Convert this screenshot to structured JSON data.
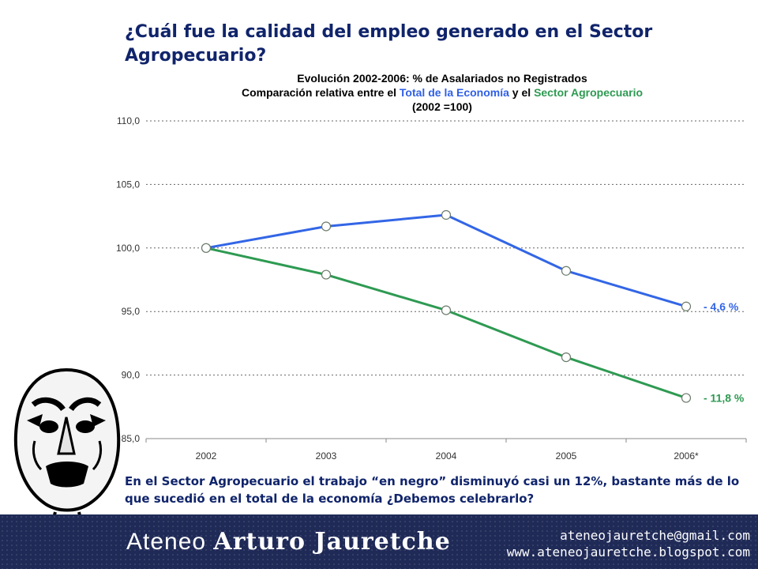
{
  "slide": {
    "title": "¿Cuál fue la calidad del empleo generado en el Sector Agropecuario?",
    "caption": "En el Sector Agropecuario el trabajo “en negro” disminuyó casi un 12%, bastante más de lo que sucedió en el total de la economía ¿Debemos celebrarlo?"
  },
  "chart_header": {
    "title": "Evolución 2002-2006: % de Asalariados no Registrados",
    "subtitle_prefix": "Comparación relativa entre el ",
    "subtitle_blue": "Total de la Economía",
    "subtitle_mid": " y el ",
    "subtitle_green": "Sector Agropecuario",
    "base_note": "(2002 =100)"
  },
  "chart_data": {
    "type": "line",
    "title": "Evolución 2002-2006: % de Asalariados no Registrados",
    "categories": [
      "2002",
      "2003",
      "2004",
      "2005",
      "2006*"
    ],
    "ylim": [
      85,
      110
    ],
    "yticks": [
      110,
      105,
      100,
      95,
      90,
      85
    ],
    "ytick_labels": [
      "110,0",
      "105,0",
      "100,0",
      "95,0",
      "90,0",
      "85,0"
    ],
    "grid": true,
    "series": [
      {
        "name": "Total de la Economía",
        "values": [
          100.0,
          101.7,
          102.6,
          98.2,
          95.4
        ],
        "color": "#3366e6",
        "end_label": "- 4,6 %"
      },
      {
        "name": "Sector Agropecuario",
        "values": [
          100.0,
          97.9,
          95.1,
          91.4,
          88.2
        ],
        "color": "#2e9a52",
        "end_label": "- 11,8 %"
      }
    ]
  },
  "footer": {
    "brand_part1": "Ateneo ",
    "brand_part2": "Arturo Jauretche",
    "email": "ateneojauretche@gmail.com",
    "website": "www.ateneojauretche.blogspot.com",
    "background": "#1f2a57"
  }
}
